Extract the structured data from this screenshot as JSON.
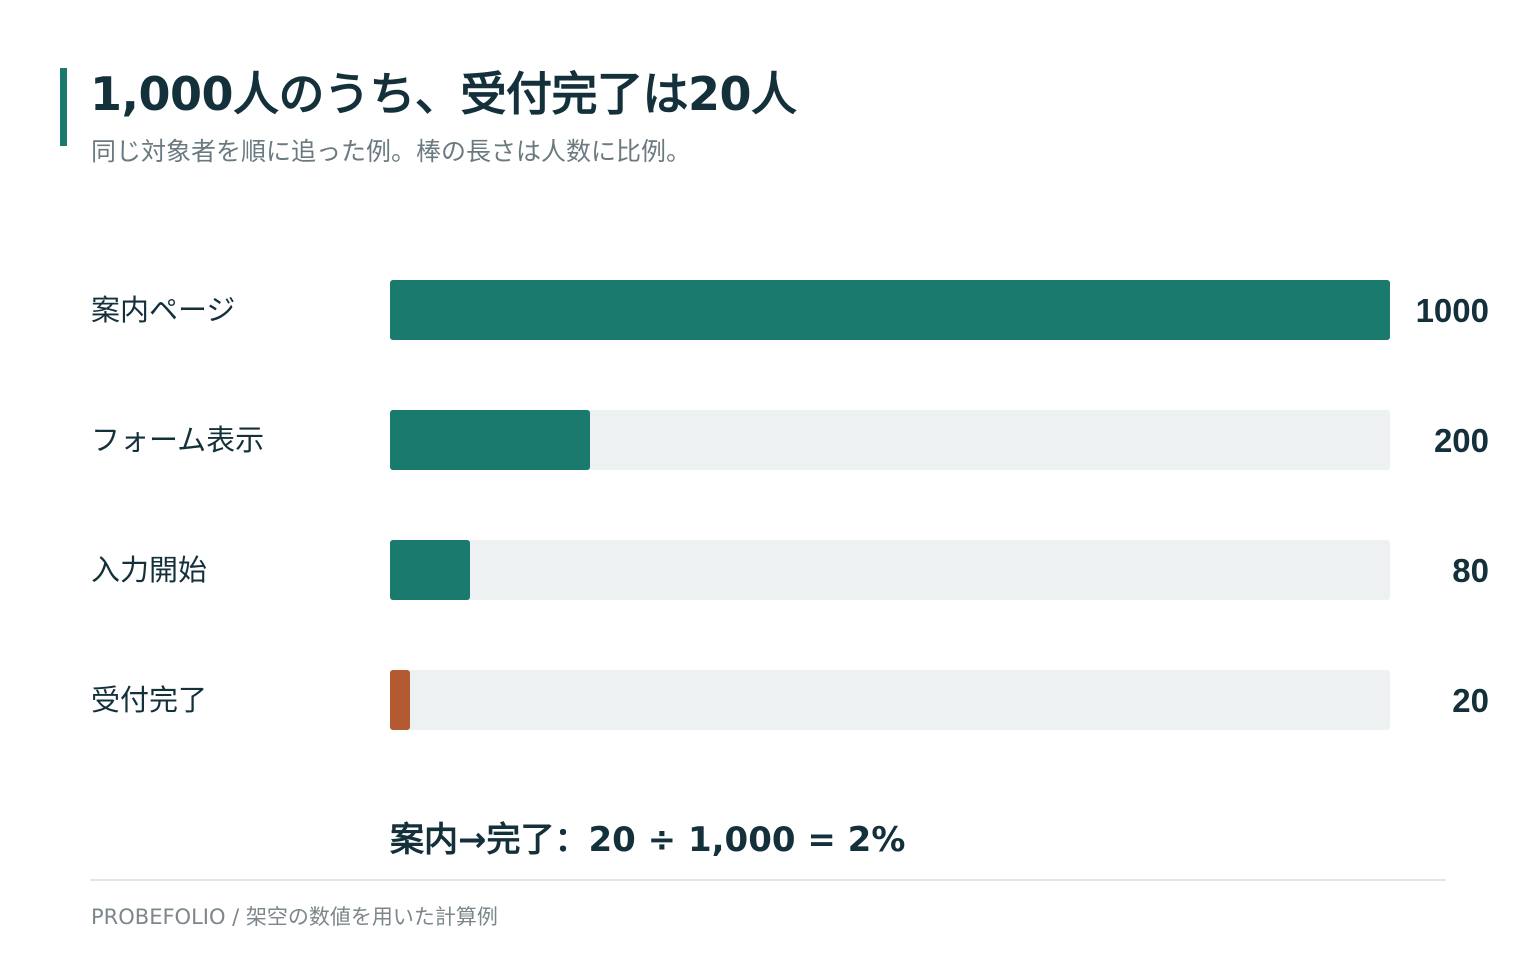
{
  "header": {
    "title": "1,000人のうち、受付完了は20人",
    "subtitle": "同じ対象者を順に追った例。棒の長さは人数に比例。"
  },
  "chart_data": {
    "type": "bar",
    "orientation": "horizontal",
    "categories": [
      "案内ページ",
      "フォーム表示",
      "入力開始",
      "受付完了"
    ],
    "values": [
      1000,
      200,
      80,
      20
    ],
    "value_labels": [
      "1000",
      "200",
      "80",
      "20"
    ],
    "xlim": [
      0,
      1000
    ],
    "grid": false,
    "legend": "none",
    "colors": {
      "bar": "#1a7a6e",
      "highlight": "#b35a32",
      "track": "#eef1f2"
    },
    "highlight_index": 3
  },
  "formula": "案内→完了：20 ÷ 1,000 = 2%",
  "footer": "PROBEFOLIO / 架空の数値を用いた計算例"
}
